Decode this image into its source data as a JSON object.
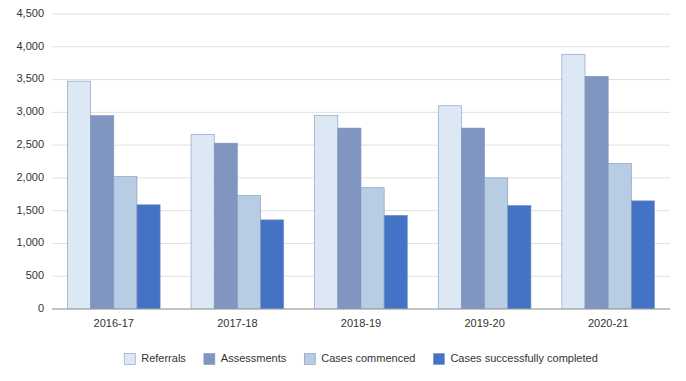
{
  "chart_data": {
    "type": "bar",
    "categories": [
      "2016-17",
      "2017-18",
      "2018-19",
      "2019-20",
      "2020-21"
    ],
    "series": [
      {
        "name": "Referrals",
        "color": "#dce9f5",
        "values": [
          3476,
          2662,
          2950,
          3100,
          3886
        ]
      },
      {
        "name": "Assessments",
        "color": "#8096c0",
        "values": [
          2950,
          2530,
          2760,
          2760,
          3550
        ]
      },
      {
        "name": "Cases commenced",
        "color": "#b8cce4",
        "values": [
          2020,
          1730,
          1850,
          2000,
          2220
        ]
      },
      {
        "name": "Cases successfully completed",
        "color": "#4472c4",
        "values": [
          1590,
          1360,
          1430,
          1580,
          1650
        ]
      }
    ],
    "ylim": [
      0,
      4500
    ],
    "yticks": [
      0,
      500,
      {
        "value": 1000,
        "label": "1,000"
      },
      {
        "value": 1500,
        "label": "1,500"
      },
      {
        "value": 2000,
        "label": "2,000"
      },
      {
        "value": 2500,
        "label": "2,500"
      },
      {
        "value": 3000,
        "label": "3,000"
      },
      {
        "value": 3500,
        "label": "3,500"
      },
      {
        "value": 4000,
        "label": "4,000"
      },
      {
        "value": 4500,
        "label": "4,500"
      }
    ],
    "grid": true,
    "legend": "bottom"
  }
}
